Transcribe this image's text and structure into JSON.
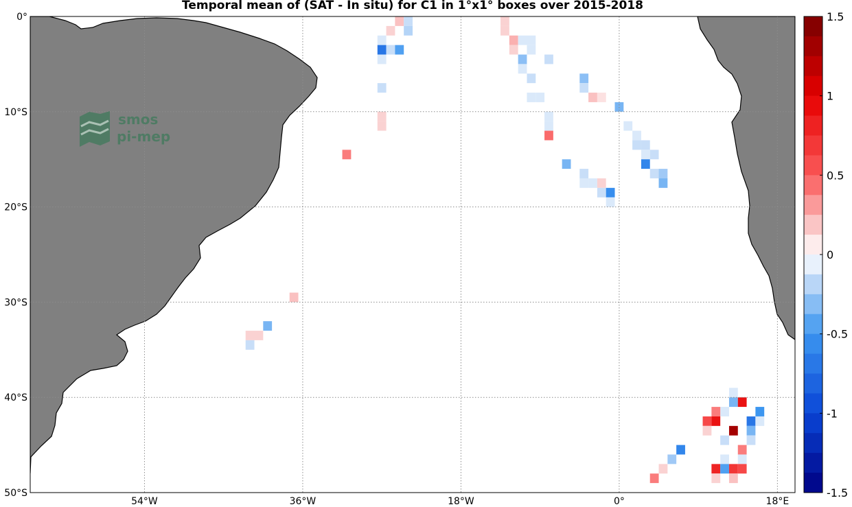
{
  "title": "Temporal mean of (SAT - In situ) for C1 in 1°x1° boxes over 2015-2018",
  "logo": {
    "line1": "smos",
    "line2": "pi-mep"
  },
  "axes": {
    "lon_ticks": [
      {
        "value": -54,
        "label": "54°W"
      },
      {
        "value": -36,
        "label": "36°W"
      },
      {
        "value": -18,
        "label": "18°W"
      },
      {
        "value": 0,
        "label": "0°"
      },
      {
        "value": 18,
        "label": "18°E"
      }
    ],
    "lat_ticks": [
      {
        "value": 0,
        "label": "0°"
      },
      {
        "value": -10,
        "label": "10°S"
      },
      {
        "value": -20,
        "label": "20°S"
      },
      {
        "value": -30,
        "label": "30°S"
      },
      {
        "value": -40,
        "label": "40°S"
      },
      {
        "value": -50,
        "label": "50°S"
      }
    ],
    "lon_range": [
      -67,
      20
    ],
    "lat_range": [
      -50,
      0
    ],
    "grid": true
  },
  "colorbar": {
    "min": -1.5,
    "max": 1.5,
    "ticks": [
      {
        "value": 1.5,
        "label": "1.5"
      },
      {
        "value": 1,
        "label": "1"
      },
      {
        "value": 0.5,
        "label": "0.5"
      },
      {
        "value": 0,
        "label": "0"
      },
      {
        "value": -0.5,
        "label": "-0.5"
      },
      {
        "value": -1,
        "label": "-1"
      },
      {
        "value": -1.5,
        "label": "-1.5"
      }
    ]
  },
  "colors": {
    "land": "#808080",
    "coast": "#000000",
    "grid": "#8c8c8c",
    "ocean": "#ffffff"
  },
  "chart_data": {
    "type": "heatmap",
    "title": "Temporal mean of (SAT - In situ) for C1 in 1°x1° boxes over 2015-2018",
    "cells": [
      {
        "lon": -25,
        "lat": -0.5,
        "value": 0.2
      },
      {
        "lon": -24,
        "lat": -0.5,
        "value": -0.15
      },
      {
        "lon": -26,
        "lat": -1.5,
        "value": 0.15
      },
      {
        "lon": -24,
        "lat": -1.5,
        "value": -0.2
      },
      {
        "lon": -27,
        "lat": -2.5,
        "value": -0.1
      },
      {
        "lon": -27,
        "lat": -3.5,
        "value": -0.7
      },
      {
        "lon": -26,
        "lat": -3.5,
        "value": -0.15
      },
      {
        "lon": -25,
        "lat": -3.5,
        "value": -0.45
      },
      {
        "lon": -27,
        "lat": -4.5,
        "value": -0.1
      },
      {
        "lon": -27,
        "lat": -7.5,
        "value": -0.15
      },
      {
        "lon": -27,
        "lat": -10.5,
        "value": 0.15
      },
      {
        "lon": -27,
        "lat": -11.5,
        "value": 0.15
      },
      {
        "lon": -31,
        "lat": -14.5,
        "value": 0.4
      },
      {
        "lon": -37,
        "lat": -29.5,
        "value": 0.2
      },
      {
        "lon": -40,
        "lat": -32.5,
        "value": -0.35
      },
      {
        "lon": -41,
        "lat": -33.5,
        "value": 0.15
      },
      {
        "lon": -42,
        "lat": -33.5,
        "value": 0.15
      },
      {
        "lon": -42,
        "lat": -34.5,
        "value": -0.15
      },
      {
        "lon": -13,
        "lat": -0.5,
        "value": 0.15
      },
      {
        "lon": -13,
        "lat": -1.5,
        "value": 0.15
      },
      {
        "lon": -12,
        "lat": -2.5,
        "value": 0.25
      },
      {
        "lon": -11,
        "lat": -2.5,
        "value": -0.1
      },
      {
        "lon": -10,
        "lat": -2.5,
        "value": -0.1
      },
      {
        "lon": -12,
        "lat": -3.5,
        "value": 0.15
      },
      {
        "lon": -10,
        "lat": -3.5,
        "value": -0.1
      },
      {
        "lon": -11,
        "lat": -4.5,
        "value": -0.3
      },
      {
        "lon": -8,
        "lat": -4.5,
        "value": -0.15
      },
      {
        "lon": -11,
        "lat": -5.5,
        "value": -0.1
      },
      {
        "lon": -10,
        "lat": -6.5,
        "value": -0.15
      },
      {
        "lon": -10,
        "lat": -8.5,
        "value": -0.1
      },
      {
        "lon": -9,
        "lat": -8.5,
        "value": -0.1
      },
      {
        "lon": -8,
        "lat": -10.5,
        "value": -0.1
      },
      {
        "lon": -8,
        "lat": -11.5,
        "value": -0.1
      },
      {
        "lon": -8,
        "lat": -12.5,
        "value": 0.45
      },
      {
        "lon": -6,
        "lat": -15.5,
        "value": -0.35
      },
      {
        "lon": -4,
        "lat": -6.5,
        "value": -0.3
      },
      {
        "lon": -4,
        "lat": -7.5,
        "value": -0.15
      },
      {
        "lon": -3,
        "lat": -8.5,
        "value": 0.2
      },
      {
        "lon": -2,
        "lat": -8.5,
        "value": 0.1
      },
      {
        "lon": -4,
        "lat": -16.5,
        "value": -0.15
      },
      {
        "lon": -4,
        "lat": -17.5,
        "value": -0.1
      },
      {
        "lon": -3,
        "lat": -17.5,
        "value": -0.1
      },
      {
        "lon": -2,
        "lat": -17.5,
        "value": 0.15
      },
      {
        "lon": -2,
        "lat": -18.5,
        "value": -0.15
      },
      {
        "lon": -1,
        "lat": -18.5,
        "value": -0.55
      },
      {
        "lon": -1,
        "lat": -19.5,
        "value": -0.1
      },
      {
        "lon": 0,
        "lat": -9.5,
        "value": -0.35
      },
      {
        "lon": 1,
        "lat": -11.5,
        "value": -0.1
      },
      {
        "lon": 2,
        "lat": -12.5,
        "value": -0.1
      },
      {
        "lon": 2,
        "lat": -13.5,
        "value": -0.15
      },
      {
        "lon": 3,
        "lat": -13.5,
        "value": -0.15
      },
      {
        "lon": 3,
        "lat": -14.5,
        "value": -0.1
      },
      {
        "lon": 4,
        "lat": -14.5,
        "value": -0.15
      },
      {
        "lon": 3,
        "lat": -15.5,
        "value": -0.6
      },
      {
        "lon": 4,
        "lat": -16.5,
        "value": -0.15
      },
      {
        "lon": 5,
        "lat": -16.5,
        "value": -0.25
      },
      {
        "lon": 5,
        "lat": -17.5,
        "value": -0.35
      },
      {
        "lon": 13,
        "lat": -39.5,
        "value": -0.1
      },
      {
        "lon": 13,
        "lat": -40.5,
        "value": -0.35
      },
      {
        "lon": 14,
        "lat": -40.5,
        "value": 0.9
      },
      {
        "lon": 12,
        "lat": -41.5,
        "value": -0.1
      },
      {
        "lon": 11,
        "lat": -41.5,
        "value": 0.4
      },
      {
        "lon": 16,
        "lat": -41.5,
        "value": -0.5
      },
      {
        "lon": 10,
        "lat": -42.5,
        "value": 0.6
      },
      {
        "lon": 11,
        "lat": -42.5,
        "value": 0.9
      },
      {
        "lon": 15,
        "lat": -42.5,
        "value": -0.7
      },
      {
        "lon": 16,
        "lat": -42.5,
        "value": -0.1
      },
      {
        "lon": 10,
        "lat": -43.5,
        "value": 0.15
      },
      {
        "lon": 13,
        "lat": -43.5,
        "value": 1.3
      },
      {
        "lon": 15,
        "lat": -43.5,
        "value": -0.35
      },
      {
        "lon": 12,
        "lat": -44.5,
        "value": -0.15
      },
      {
        "lon": 15,
        "lat": -44.5,
        "value": -0.15
      },
      {
        "lon": 14,
        "lat": -45.5,
        "value": 0.4
      },
      {
        "lon": 7,
        "lat": -45.5,
        "value": -0.6
      },
      {
        "lon": 6,
        "lat": -46.5,
        "value": -0.25
      },
      {
        "lon": 12,
        "lat": -46.5,
        "value": -0.1
      },
      {
        "lon": 14,
        "lat": -46.5,
        "value": -0.1
      },
      {
        "lon": 11,
        "lat": -47.5,
        "value": 0.8
      },
      {
        "lon": 12,
        "lat": -47.5,
        "value": -0.45
      },
      {
        "lon": 13,
        "lat": -47.5,
        "value": 0.7
      },
      {
        "lon": 14,
        "lat": -47.5,
        "value": 0.6
      },
      {
        "lon": 5,
        "lat": -47.5,
        "value": 0.15
      },
      {
        "lon": 4,
        "lat": -48.5,
        "value": 0.4
      },
      {
        "lon": 11,
        "lat": -48.5,
        "value": 0.15
      },
      {
        "lon": 13,
        "lat": -48.5,
        "value": 0.2
      }
    ]
  }
}
